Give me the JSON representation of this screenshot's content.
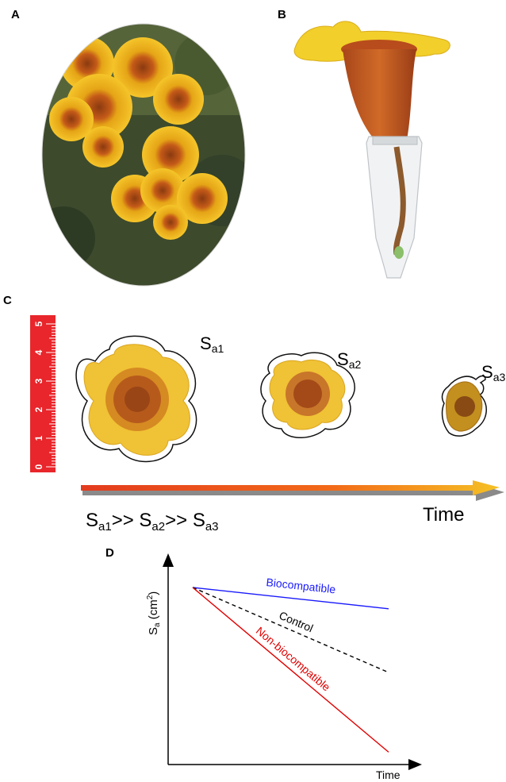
{
  "panels": {
    "a": "A",
    "b": "B",
    "c": "C",
    "d": "D"
  },
  "panel_c": {
    "flower_labels": [
      {
        "main": "S",
        "sub": "a1"
      },
      {
        "main": "S",
        "sub": "a2"
      },
      {
        "main": "S",
        "sub": "a3"
      }
    ],
    "ruler_ticks": [
      "0",
      "1",
      "2",
      "3",
      "4",
      "5"
    ],
    "inequality": {
      "parts": [
        {
          "main": "S",
          "sub": "a1",
          "op": ">>"
        },
        {
          "main": "S",
          "sub": "a2",
          "op": ">>"
        },
        {
          "main": "S",
          "sub": "a3",
          "op": ""
        }
      ]
    },
    "time_label": "Time"
  },
  "chart_data": {
    "type": "line",
    "title": "",
    "ylabel": {
      "main": "S",
      "sub": "a",
      "unit_open": " (cm",
      "unit_sup": "2",
      "unit_close": ")"
    },
    "xlabel": "Time",
    "series": [
      {
        "name": "Biocompatible",
        "color": "#1a1aff",
        "style": "solid",
        "x": [
          0,
          1
        ],
        "y": [
          1.0,
          0.88
        ]
      },
      {
        "name": "Control",
        "color": "#000000",
        "style": "dashed",
        "x": [
          0,
          1
        ],
        "y": [
          1.0,
          0.52
        ]
      },
      {
        "name": "Non-biocompatible",
        "color": "#e00000",
        "style": "solid",
        "x": [
          0,
          1
        ],
        "y": [
          1.0,
          0.07
        ]
      }
    ],
    "grid": false,
    "legend": "inline"
  }
}
